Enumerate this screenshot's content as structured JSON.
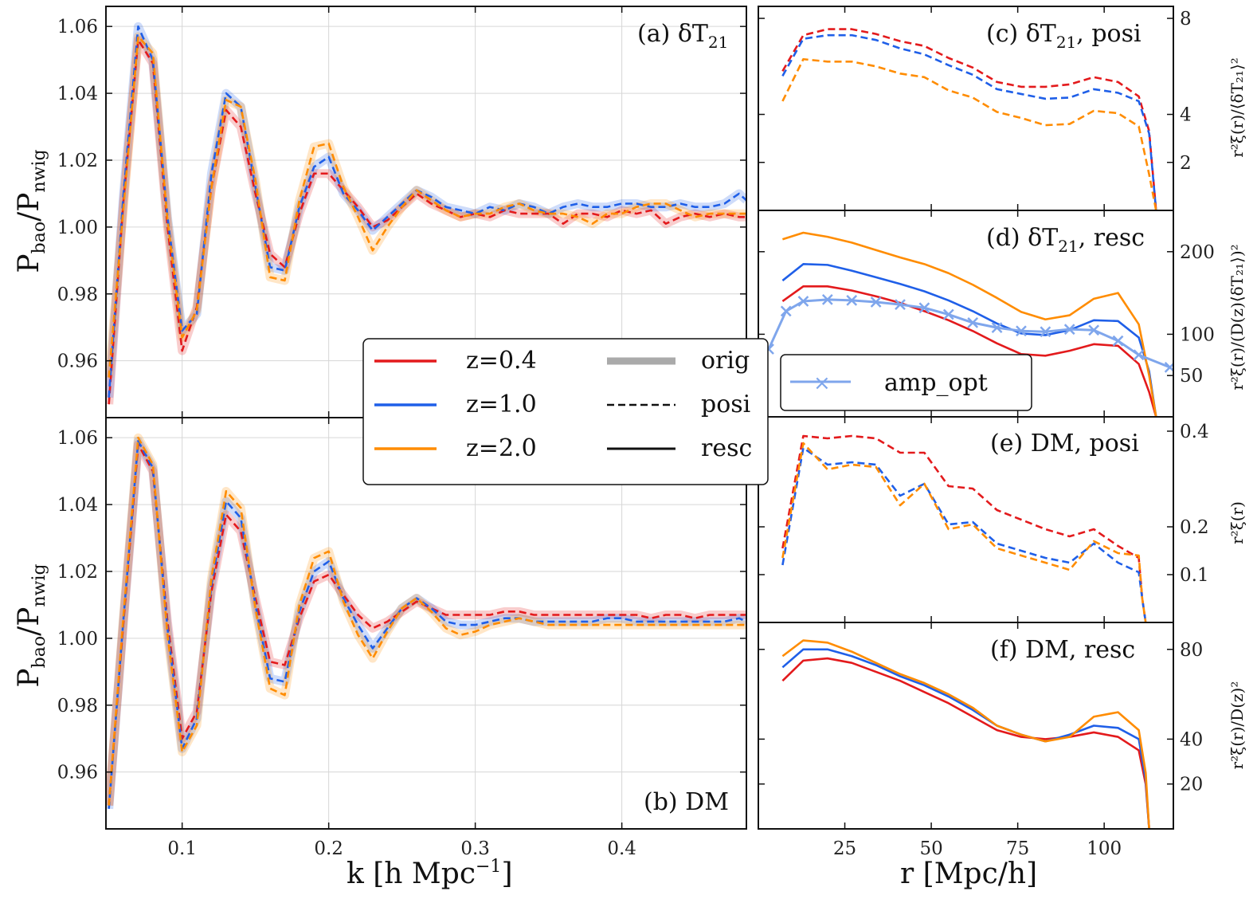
{
  "colors": {
    "z04": "#e31a1c",
    "z10": "#1f5fe8",
    "z20": "#ff8c00",
    "amp": "#7fa6ec",
    "grid": "#d6d6d6"
  },
  "chart_data": [
    {
      "id": "a",
      "type": "line",
      "title": "(a) δT21",
      "xlabel": "k  [h Mpc^-1]",
      "ylabel": "P_bao / P_nwig",
      "xlim": [
        0.048,
        0.485
      ],
      "ylim": [
        0.943,
        1.066
      ],
      "xticks": [
        0.1,
        0.2,
        0.3,
        0.4
      ],
      "yticks": [
        0.96,
        0.98,
        1.0,
        1.02,
        1.04,
        1.06
      ],
      "x": [
        0.05,
        0.06,
        0.07,
        0.08,
        0.09,
        0.1,
        0.11,
        0.12,
        0.13,
        0.14,
        0.15,
        0.16,
        0.17,
        0.18,
        0.19,
        0.2,
        0.21,
        0.22,
        0.23,
        0.24,
        0.25,
        0.26,
        0.27,
        0.28,
        0.29,
        0.3,
        0.31,
        0.32,
        0.33,
        0.34,
        0.35,
        0.36,
        0.37,
        0.38,
        0.39,
        0.4,
        0.41,
        0.42,
        0.43,
        0.44,
        0.45,
        0.46,
        0.47,
        0.48,
        0.485
      ],
      "series": [
        {
          "name": "z=0.4 posi",
          "z": "0.4",
          "kind": "posi",
          "values": [
            0.947,
            1.008,
            1.056,
            1.049,
            1.0,
            0.963,
            0.976,
            1.012,
            1.035,
            1.03,
            1.01,
            0.992,
            0.988,
            1.004,
            1.016,
            1.016,
            1.011,
            1.006,
            1.0,
            1.002,
            1.006,
            1.01,
            1.007,
            1.005,
            1.003,
            1.004,
            1.003,
            1.005,
            1.004,
            1.004,
            1.004,
            1.001,
            1.004,
            1.004,
            1.003,
            1.005,
            1.004,
            1.005,
            1.001,
            1.003,
            1.004,
            1.003,
            1.004,
            1.003,
            1.003
          ]
        },
        {
          "name": "z=1.0 posi",
          "z": "1.0",
          "kind": "posi",
          "values": [
            0.949,
            1.01,
            1.06,
            1.05,
            1.003,
            0.969,
            0.974,
            1.016,
            1.04,
            1.036,
            1.012,
            0.988,
            0.987,
            1.006,
            1.018,
            1.021,
            1.01,
            1.005,
            0.999,
            1.003,
            1.007,
            1.011,
            1.009,
            1.006,
            1.005,
            1.004,
            1.006,
            1.005,
            1.007,
            1.006,
            1.004,
            1.006,
            1.007,
            1.006,
            1.006,
            1.007,
            1.007,
            1.006,
            1.006,
            1.007,
            1.006,
            1.006,
            1.007,
            1.01,
            1.008
          ]
        },
        {
          "name": "z=2.0 posi",
          "z": "2.0",
          "kind": "posi",
          "values": [
            0.955,
            1.006,
            1.057,
            1.052,
            1.002,
            0.967,
            0.975,
            1.012,
            1.038,
            1.036,
            1.014,
            0.985,
            0.984,
            1.008,
            1.024,
            1.025,
            1.012,
            1.003,
            0.993,
            1.0,
            1.006,
            1.011,
            1.008,
            1.005,
            1.003,
            1.004,
            1.004,
            1.006,
            1.007,
            1.005,
            1.004,
            1.004,
            1.003,
            1.001,
            1.004,
            1.004,
            1.006,
            1.007,
            1.007,
            1.005,
            1.003,
            1.004,
            1.004,
            1.004,
            1.004
          ]
        }
      ]
    },
    {
      "id": "b",
      "type": "line",
      "title": "(b) DM",
      "xlabel": "k  [h Mpc^-1]",
      "ylabel": "P_bao / P_nwig",
      "xlim": [
        0.048,
        0.485
      ],
      "ylim": [
        0.943,
        1.066
      ],
      "xticks": [
        0.1,
        0.2,
        0.3,
        0.4
      ],
      "yticks": [
        0.96,
        0.98,
        1.0,
        1.02,
        1.04,
        1.06
      ],
      "x": [
        0.05,
        0.06,
        0.07,
        0.08,
        0.09,
        0.1,
        0.11,
        0.12,
        0.13,
        0.14,
        0.15,
        0.16,
        0.17,
        0.18,
        0.19,
        0.2,
        0.21,
        0.22,
        0.23,
        0.24,
        0.25,
        0.26,
        0.27,
        0.28,
        0.29,
        0.3,
        0.31,
        0.32,
        0.33,
        0.34,
        0.35,
        0.36,
        0.37,
        0.38,
        0.39,
        0.4,
        0.41,
        0.42,
        0.43,
        0.44,
        0.45,
        0.46,
        0.47,
        0.48,
        0.485
      ],
      "series": [
        {
          "name": "z=0.4 posi",
          "z": "0.4",
          "kind": "posi",
          "values": [
            0.95,
            1.005,
            1.058,
            1.05,
            1.005,
            0.97,
            0.978,
            1.014,
            1.037,
            1.032,
            1.012,
            0.993,
            0.992,
            1.006,
            1.017,
            1.019,
            1.013,
            1.007,
            1.003,
            1.005,
            1.008,
            1.011,
            1.009,
            1.007,
            1.007,
            1.007,
            1.007,
            1.008,
            1.008,
            1.007,
            1.007,
            1.007,
            1.007,
            1.007,
            1.007,
            1.007,
            1.007,
            1.006,
            1.007,
            1.007,
            1.006,
            1.007,
            1.007,
            1.007,
            1.007
          ]
        },
        {
          "name": "z=1.0 posi",
          "z": "1.0",
          "kind": "posi",
          "values": [
            0.949,
            1.006,
            1.059,
            1.051,
            1.003,
            0.967,
            0.976,
            1.016,
            1.041,
            1.036,
            1.01,
            0.988,
            0.987,
            1.008,
            1.02,
            1.023,
            1.012,
            1.004,
            0.997,
            1.003,
            1.009,
            1.012,
            1.009,
            1.005,
            1.004,
            1.004,
            1.005,
            1.006,
            1.006,
            1.005,
            1.005,
            1.005,
            1.005,
            1.005,
            1.006,
            1.006,
            1.005,
            1.005,
            1.005,
            1.005,
            1.005,
            1.005,
            1.005,
            1.006,
            1.005
          ]
        },
        {
          "name": "z=2.0 posi",
          "z": "2.0",
          "kind": "posi",
          "values": [
            0.95,
            1.007,
            1.06,
            1.052,
            1.001,
            0.966,
            0.974,
            1.018,
            1.044,
            1.039,
            1.009,
            0.985,
            0.983,
            1.01,
            1.024,
            1.026,
            1.011,
            1.001,
            0.994,
            1.002,
            1.009,
            1.012,
            1.008,
            1.003,
            1.001,
            1.002,
            1.004,
            1.005,
            1.006,
            1.005,
            1.004,
            1.004,
            1.004,
            1.004,
            1.004,
            1.004,
            1.004,
            1.004,
            1.004,
            1.004,
            1.004,
            1.004,
            1.004,
            1.004,
            1.004
          ]
        }
      ]
    },
    {
      "id": "c",
      "type": "line",
      "title": "(c) δT21, posi",
      "ylabel": "r²ξ(r)/⟨δT21⟩²",
      "xlim": [
        0,
        120
      ],
      "ylim": [
        0,
        8.5
      ],
      "xticks": [
        25,
        50,
        75,
        100
      ],
      "yticks": [
        2,
        4,
        8
      ],
      "ytick_labels": [
        "2",
        "4",
        "8"
      ],
      "x": [
        7,
        13,
        20,
        27,
        34,
        41,
        48,
        55,
        62,
        69,
        76,
        83,
        90,
        97,
        104,
        110,
        113,
        115
      ],
      "series": [
        {
          "name": "z=0.4 posi",
          "z": "0.4",
          "kind": "posi",
          "values": [
            5.8,
            7.3,
            7.55,
            7.55,
            7.35,
            7.05,
            6.85,
            6.35,
            5.95,
            5.35,
            5.15,
            5.15,
            5.25,
            5.55,
            5.35,
            4.75,
            3.3,
            0.0
          ]
        },
        {
          "name": "z=1.0 posi",
          "z": "1.0",
          "kind": "posi",
          "values": [
            5.6,
            7.15,
            7.3,
            7.3,
            7.1,
            6.75,
            6.5,
            6.05,
            5.65,
            5.05,
            4.85,
            4.65,
            4.7,
            5.05,
            4.9,
            4.55,
            3.2,
            0.0
          ]
        },
        {
          "name": "z=2.0 posi",
          "z": "2.0",
          "kind": "posi",
          "values": [
            4.55,
            6.3,
            6.2,
            6.2,
            6.0,
            5.7,
            5.55,
            5.0,
            4.7,
            4.1,
            3.85,
            3.55,
            3.6,
            4.15,
            4.05,
            3.5,
            1.5,
            0.0
          ]
        }
      ]
    },
    {
      "id": "d",
      "type": "line",
      "title": "(d) δT21, resc",
      "ylabel": "r²ξ(r)/(D(z)⟨δT21⟩)²",
      "xlim": [
        0,
        120
      ],
      "ylim": [
        0,
        250
      ],
      "xticks": [
        25,
        50,
        75,
        100
      ],
      "yticks": [
        50,
        100,
        200
      ],
      "ytick_labels": [
        "50",
        "100",
        "200"
      ],
      "x": [
        7,
        13,
        20,
        27,
        34,
        41,
        48,
        55,
        62,
        69,
        76,
        83,
        90,
        97,
        104,
        110,
        113,
        115
      ],
      "series": [
        {
          "name": "z=0.4 resc",
          "z": "0.4",
          "kind": "resc",
          "values": [
            140,
            158,
            158,
            153,
            146,
            138,
            128,
            117,
            104,
            89,
            76,
            74,
            80,
            88,
            86,
            64,
            30,
            0
          ]
        },
        {
          "name": "z=1.0 resc",
          "z": "1.0",
          "kind": "resc",
          "values": [
            165,
            185,
            184,
            177,
            169,
            161,
            152,
            141,
            128,
            113,
            101,
            99,
            105,
            117,
            116,
            96,
            55,
            0
          ]
        },
        {
          "name": "z=2.0 resc",
          "z": "2.0",
          "kind": "resc",
          "values": [
            215,
            223,
            218,
            211,
            202,
            193,
            185,
            174,
            160,
            144,
            127,
            118,
            123,
            143,
            150,
            112,
            50,
            0
          ]
        },
        {
          "name": "amp_opt",
          "kind": "amp_opt",
          "values": [
            82,
            128,
            140,
            142,
            141,
            139,
            136,
            132,
            124,
            114,
            108,
            104,
            103,
            106,
            105,
            92,
            75,
            60
          ],
          "x_override": [
            3,
            8,
            13,
            20,
            27,
            34,
            41,
            48,
            55,
            62,
            69,
            76,
            83,
            90,
            97,
            104,
            110,
            119
          ]
        }
      ],
      "legend": {
        "label": "amp_opt",
        "placement": "lower-left"
      }
    },
    {
      "id": "e",
      "type": "line",
      "title": "(e) DM, posi",
      "ylabel": "r²ξ(r)",
      "xlim": [
        0,
        120
      ],
      "ylim": [
        0,
        0.43
      ],
      "xticks": [
        25,
        50,
        75,
        100
      ],
      "yticks": [
        0.1,
        0.2,
        0.4
      ],
      "ytick_labels": [
        "0.1",
        "0.2",
        "0.4"
      ],
      "x": [
        7,
        13,
        20,
        27,
        34,
        41,
        48,
        55,
        62,
        69,
        76,
        83,
        90,
        97,
        104,
        110,
        111,
        112
      ],
      "series": [
        {
          "name": "z=0.4 posi",
          "z": "0.4",
          "kind": "posi",
          "values": [
            0.155,
            0.39,
            0.385,
            0.39,
            0.385,
            0.355,
            0.355,
            0.285,
            0.28,
            0.235,
            0.215,
            0.195,
            0.18,
            0.195,
            0.16,
            0.135,
            0.05,
            0.0
          ]
        },
        {
          "name": "z=1.0 posi",
          "z": "1.0",
          "kind": "posi",
          "values": [
            0.12,
            0.365,
            0.33,
            0.335,
            0.33,
            0.265,
            0.29,
            0.205,
            0.21,
            0.165,
            0.15,
            0.135,
            0.125,
            0.165,
            0.125,
            0.105,
            0.05,
            0.0
          ]
        },
        {
          "name": "z=2.0 posi",
          "z": "2.0",
          "kind": "posi",
          "values": [
            0.135,
            0.375,
            0.32,
            0.33,
            0.325,
            0.245,
            0.29,
            0.195,
            0.205,
            0.155,
            0.14,
            0.125,
            0.11,
            0.17,
            0.145,
            0.14,
            0.05,
            0.0
          ]
        }
      ]
    },
    {
      "id": "f",
      "type": "line",
      "title": "(f) DM, resc",
      "ylabel": "r²ξ(r)/D(z)²",
      "xlim": [
        0,
        120
      ],
      "ylim": [
        0,
        92
      ],
      "xticks": [
        25,
        50,
        75,
        100
      ],
      "yticks": [
        20,
        40,
        80
      ],
      "ytick_labels": [
        "20",
        "40",
        "80"
      ],
      "x": [
        7,
        13,
        20,
        27,
        34,
        41,
        48,
        55,
        62,
        69,
        76,
        83,
        90,
        97,
        104,
        110,
        112,
        113
      ],
      "series": [
        {
          "name": "z=0.4 resc",
          "z": "0.4",
          "kind": "resc",
          "values": [
            66,
            75,
            76,
            74,
            70,
            66,
            61,
            56,
            50,
            44,
            41,
            40,
            41,
            43,
            41,
            35,
            20,
            0
          ]
        },
        {
          "name": "z=1.0 resc",
          "z": "1.0",
          "kind": "resc",
          "values": [
            72,
            80,
            80,
            77,
            73,
            68,
            64,
            59,
            53,
            46,
            42,
            39,
            42,
            46,
            45,
            40,
            22,
            0
          ]
        },
        {
          "name": "z=2.0 resc",
          "z": "2.0",
          "kind": "resc",
          "values": [
            77,
            84,
            83,
            79,
            74,
            69,
            65,
            60,
            54,
            46,
            42,
            39,
            41,
            50,
            52,
            44,
            25,
            0
          ]
        }
      ]
    }
  ],
  "legend": {
    "entries": [
      {
        "label": "z=0.4",
        "key": "z04",
        "style": "solid"
      },
      {
        "label": "z=1.0",
        "key": "z10",
        "style": "solid"
      },
      {
        "label": "z=2.0",
        "key": "z20",
        "style": "solid"
      },
      {
        "label": "orig",
        "key": "orig",
        "style": "band"
      },
      {
        "label": "posi",
        "key": "posi",
        "style": "dashed"
      },
      {
        "label": "resc",
        "key": "resc",
        "style": "solid-black"
      }
    ]
  },
  "text": {
    "title_a": "(a) δT",
    "sub_a": "21",
    "title_b": "(b) DM",
    "title_c": "(c) δT",
    "sub_c": "21",
    "tail_c": ", posi",
    "title_d": "(d) δT",
    "sub_d": "21",
    "tail_d": ", resc",
    "title_e": "(e) DM, posi",
    "title_f": "(f) DM, resc",
    "xlabel_left": "k  [h Mpc",
    "xlabel_left_sup": "−1",
    "xlabel_left_end": "]",
    "xlabel_right": "r [Mpc/h]",
    "ylabel_left": "P",
    "ylabel_left_sub": "bao",
    "ylabel_left_mid": "/P",
    "ylabel_left_sub2": "nwig",
    "ylabel_c": "r²ξ(r)/⟨δT₂₁⟩²",
    "ylabel_d": "r²ξ(r)/(D(z)⟨δT₂₁⟩)²",
    "ylabel_e": "r²ξ(r)",
    "ylabel_f": "r²ξ(r)/D(z)²",
    "amp_label": "amp_opt"
  }
}
